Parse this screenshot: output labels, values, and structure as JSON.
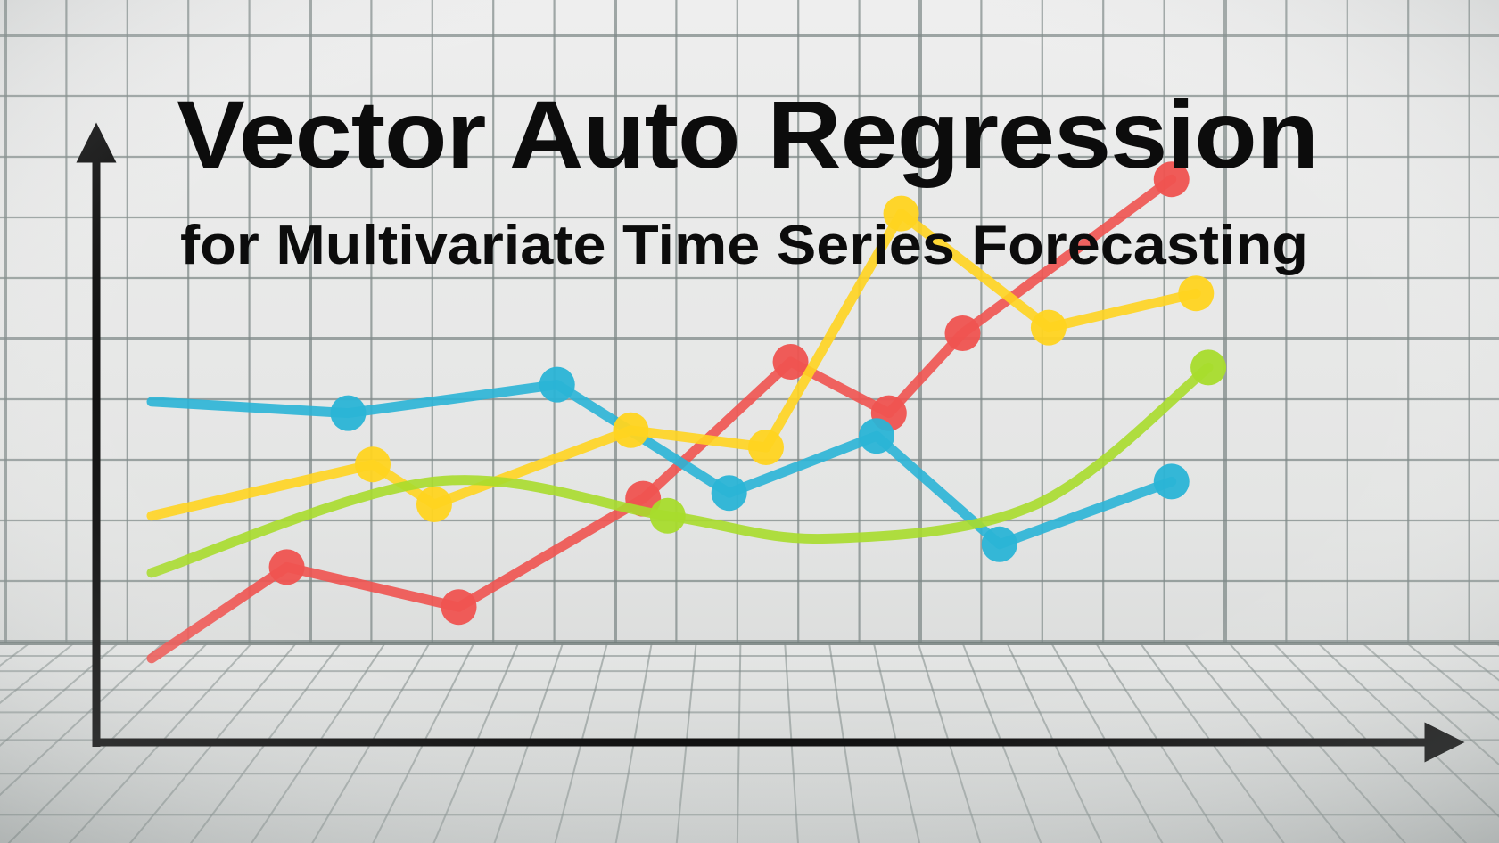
{
  "header": {
    "title": "Vector Auto Regression",
    "subtitle": "for Multivariate Time Series Forecasting"
  },
  "chart_data": {
    "type": "line",
    "title": "Vector Auto Regression",
    "subtitle": "for Multivariate Time Series Forecasting",
    "xlabel": "",
    "ylabel": "",
    "grid": true,
    "legend": "none",
    "xlim": [
      0,
      10
    ],
    "ylim": [
      0,
      10
    ],
    "series": [
      {
        "color": "#ef5350",
        "smooth": false,
        "x": [
          0,
          1.1,
          2.5,
          4.0,
          5.2,
          6.0,
          6.6,
          8.3
        ],
        "y": [
          0.8,
          2.4,
          1.7,
          3.6,
          6.0,
          5.1,
          6.5,
          9.2
        ],
        "markers": [
          false,
          true,
          true,
          true,
          true,
          true,
          true,
          true
        ]
      },
      {
        "color": "#2ab4d6",
        "smooth": false,
        "x": [
          0,
          1.6,
          3.3,
          4.7,
          5.9,
          6.9,
          8.3
        ],
        "y": [
          5.3,
          5.1,
          5.6,
          3.7,
          4.7,
          2.8,
          3.9
        ],
        "markers": [
          false,
          true,
          true,
          true,
          true,
          true,
          true
        ]
      },
      {
        "color": "#ffd420",
        "smooth": false,
        "x": [
          0,
          1.8,
          2.3,
          3.9,
          5.0,
          6.1,
          7.3,
          8.5
        ],
        "y": [
          3.3,
          4.2,
          3.5,
          4.8,
          4.5,
          8.6,
          6.6,
          7.2
        ],
        "markers": [
          false,
          true,
          true,
          true,
          true,
          true,
          true,
          true
        ]
      },
      {
        "color": "#a8dc2c",
        "smooth": true,
        "x": [
          0,
          2.3,
          4.2,
          5.5,
          7.2,
          8.6
        ],
        "y": [
          2.3,
          3.9,
          3.3,
          2.9,
          3.5,
          5.9
        ],
        "markers": [
          false,
          false,
          true,
          false,
          false,
          true
        ]
      }
    ]
  }
}
